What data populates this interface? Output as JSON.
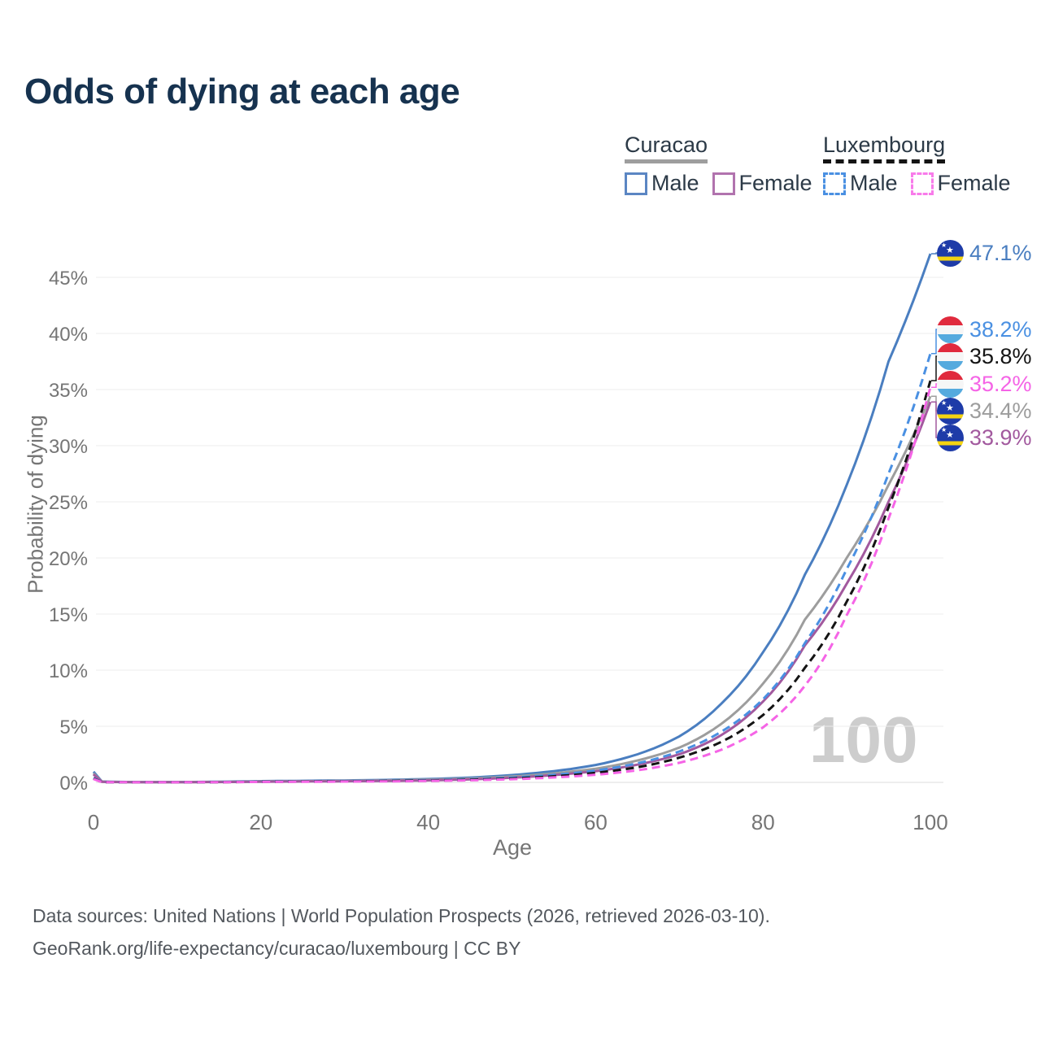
{
  "title": "Odds of dying at each age",
  "legend": {
    "groups": [
      {
        "label": "Curacao",
        "line_style": "solid",
        "underline_color": "#9e9e9e",
        "items": [
          {
            "label": "Male",
            "color": "#5b86c3",
            "dashed": false
          },
          {
            "label": "Female",
            "color": "#b173ae",
            "dashed": false
          }
        ]
      },
      {
        "label": "Luxembourg",
        "line_style": "dashed",
        "underline_color": "#141414",
        "items": [
          {
            "label": "Male",
            "color": "#4a90e2",
            "dashed": true
          },
          {
            "label": "Female",
            "color": "#f87bea",
            "dashed": true
          }
        ]
      }
    ]
  },
  "chart_data": {
    "type": "line",
    "title": "Odds of dying at each age",
    "xlabel": "Age",
    "ylabel": "Probability of dying",
    "xlim": [
      0,
      100
    ],
    "ylim_percent": [
      0,
      47.5
    ],
    "grid": "horizontal",
    "watermark": "100",
    "x_ticks": [
      0,
      20,
      40,
      60,
      80,
      100
    ],
    "y_ticks": [
      "0%",
      "5%",
      "10%",
      "15%",
      "20%",
      "25%",
      "30%",
      "35%",
      "40%",
      "45%"
    ],
    "series": [
      {
        "id": "curacao-male",
        "name": "Curacao Male",
        "country": "Curacao",
        "sex": "Male",
        "color": "#4a7ec0",
        "dashed": false,
        "flag": "curacao",
        "end_label": "47.1%",
        "end_value_percent": 47.1,
        "anchors": {
          "ages": [
            0,
            1,
            5,
            10,
            15,
            20,
            25,
            30,
            35,
            40,
            45,
            50,
            55,
            60,
            65,
            70,
            75,
            80,
            85,
            90,
            95,
            100
          ],
          "values": [
            0.95,
            0.07,
            0.03,
            0.03,
            0.06,
            0.11,
            0.14,
            0.17,
            0.22,
            0.3,
            0.43,
            0.65,
            1.0,
            1.55,
            2.5,
            4.1,
            7.0,
            11.6,
            18.5,
            26.5,
            37.5,
            47.1
          ]
        }
      },
      {
        "id": "luxembourg-male",
        "name": "Luxembourg Male",
        "country": "Luxembourg",
        "sex": "Male",
        "color": "#4a90e2",
        "dashed": true,
        "flag": "luxembourg",
        "end_label": "38.2%",
        "end_value_percent": 38.2,
        "anchors": {
          "ages": [
            0,
            1,
            5,
            10,
            15,
            20,
            25,
            30,
            35,
            40,
            45,
            50,
            55,
            60,
            65,
            70,
            75,
            80,
            85,
            90,
            95,
            100
          ],
          "values": [
            0.4,
            0.03,
            0.01,
            0.01,
            0.03,
            0.06,
            0.08,
            0.1,
            0.14,
            0.19,
            0.28,
            0.43,
            0.67,
            1.05,
            1.7,
            2.75,
            4.5,
            7.4,
            12.4,
            19.0,
            27.5,
            38.2
          ]
        }
      },
      {
        "id": "luxembourg-total",
        "name": "Luxembourg (both sexes)",
        "country": "Luxembourg",
        "sex": "Both",
        "color": "#141414",
        "dashed": true,
        "flag": "luxembourg",
        "end_label": "35.8%",
        "end_value_percent": 35.8,
        "anchors": {
          "ages": [
            0,
            1,
            5,
            10,
            15,
            20,
            25,
            30,
            35,
            40,
            45,
            50,
            55,
            60,
            65,
            70,
            75,
            80,
            85,
            90,
            95,
            100
          ],
          "values": [
            0.35,
            0.02,
            0.01,
            0.01,
            0.02,
            0.05,
            0.07,
            0.09,
            0.12,
            0.16,
            0.23,
            0.35,
            0.54,
            0.85,
            1.35,
            2.2,
            3.6,
            6.0,
            10.2,
            16.1,
            24.5,
            35.8
          ]
        }
      },
      {
        "id": "luxembourg-female",
        "name": "Luxembourg Female",
        "country": "Luxembourg",
        "sex": "Female",
        "color": "#f564e6",
        "dashed": true,
        "flag": "luxembourg",
        "end_label": "35.2%",
        "end_value_percent": 35.2,
        "anchors": {
          "ages": [
            0,
            1,
            5,
            10,
            15,
            20,
            25,
            30,
            35,
            40,
            45,
            50,
            55,
            60,
            65,
            70,
            75,
            80,
            85,
            90,
            95,
            100
          ],
          "values": [
            0.3,
            0.02,
            0.01,
            0.01,
            0.02,
            0.04,
            0.05,
            0.07,
            0.09,
            0.13,
            0.19,
            0.28,
            0.44,
            0.68,
            1.08,
            1.75,
            2.9,
            4.9,
            8.6,
            14.9,
            23.5,
            35.2
          ]
        }
      },
      {
        "id": "curacao-total",
        "name": "Curacao (both sexes)",
        "country": "Curacao",
        "sex": "Both",
        "color": "#9d9d9d",
        "dashed": false,
        "flag": "curacao",
        "end_label": "34.4%",
        "end_value_percent": 34.4,
        "anchors": {
          "ages": [
            0,
            1,
            5,
            10,
            15,
            20,
            25,
            30,
            35,
            40,
            45,
            50,
            55,
            60,
            65,
            70,
            75,
            80,
            85,
            90,
            95,
            100
          ],
          "values": [
            0.8,
            0.06,
            0.02,
            0.02,
            0.04,
            0.08,
            0.1,
            0.13,
            0.17,
            0.24,
            0.34,
            0.52,
            0.8,
            1.22,
            1.95,
            3.1,
            5.2,
            8.8,
            14.5,
            20.0,
            26.5,
            34.4
          ]
        }
      },
      {
        "id": "curacao-female",
        "name": "Curacao Female",
        "country": "Curacao",
        "sex": "Female",
        "color": "#a2599e",
        "dashed": false,
        "flag": "curacao",
        "end_label": "33.9%",
        "end_value_percent": 33.9,
        "anchors": {
          "ages": [
            0,
            1,
            5,
            10,
            15,
            20,
            25,
            30,
            35,
            40,
            45,
            50,
            55,
            60,
            65,
            70,
            75,
            80,
            85,
            90,
            95,
            100
          ],
          "values": [
            0.7,
            0.05,
            0.02,
            0.02,
            0.03,
            0.06,
            0.08,
            0.1,
            0.13,
            0.18,
            0.27,
            0.42,
            0.65,
            1.0,
            1.58,
            2.5,
            4.2,
            7.2,
            12.2,
            17.7,
            25.0,
            33.9
          ]
        }
      }
    ]
  },
  "footer": {
    "line1": "Data sources: United Nations | World Population Prospects (2026, retrieved 2026-03-10).",
    "line2": "GeoRank.org/life-expectancy/curacao/luxembourg | CC BY"
  }
}
